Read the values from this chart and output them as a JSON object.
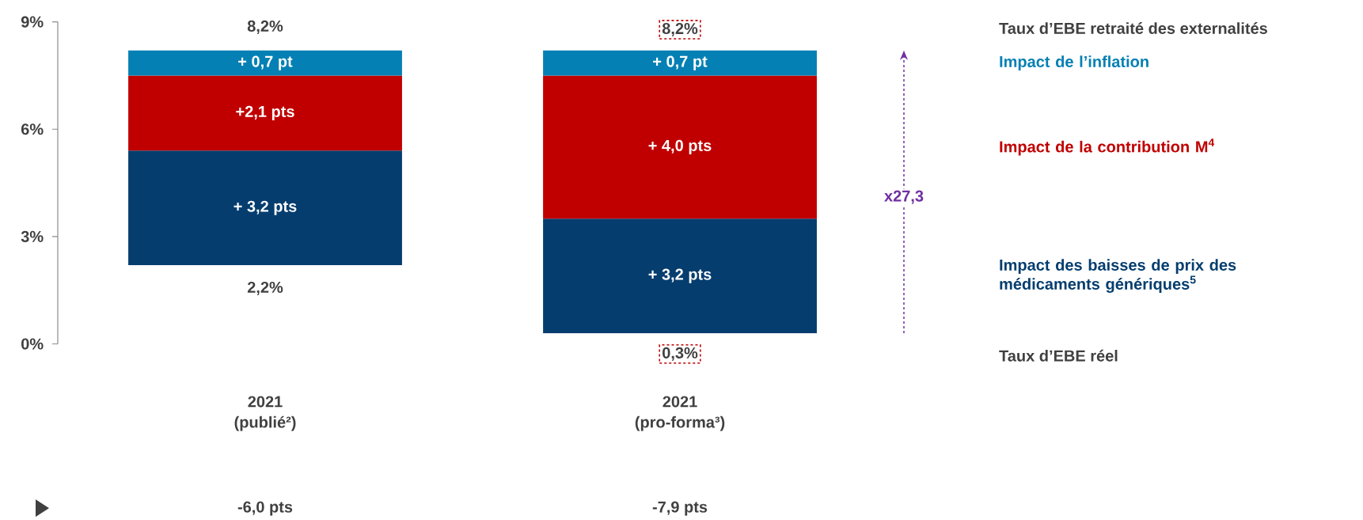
{
  "chart_data": {
    "type": "bar",
    "categories": [
      "2021 (publié²)",
      "2021 (pro-forma³)"
    ],
    "series": [
      {
        "name": "Impact des baisses de prix des médicaments génériques$^{5}$",
        "color": "#053d6e",
        "base": [
          2.2,
          0.3
        ],
        "values": [
          3.2,
          3.2
        ],
        "value_labels": [
          "+ 3,2 pts",
          "+ 3,2 pts"
        ]
      },
      {
        "name": "Impact de la contribution M$^{4}$",
        "color": "#c00000",
        "base": [
          5.4,
          3.5
        ],
        "values": [
          2.1,
          4.0
        ],
        "value_labels": [
          "+2,1 pts",
          "+ 4,0 pts"
        ]
      },
      {
        "name": "Impact de l’inflation",
        "color": "#0580b4",
        "base": [
          7.5,
          7.5
        ],
        "values": [
          0.7,
          0.7
        ],
        "value_labels": [
          "+ 0,7 pt",
          "+ 0,7 pt"
        ]
      }
    ],
    "ylim": [
      0,
      9
    ],
    "yticks": [
      {
        "value": 0,
        "label": "0%"
      },
      {
        "value": 3,
        "label": "3%"
      },
      {
        "value": 6,
        "label": "6%"
      },
      {
        "value": 9,
        "label": "9%"
      }
    ],
    "annotations": [
      "8,2%",
      "8,2%",
      "2,2%",
      "0,3%",
      "Taux d’EBE retraité des externalités",
      "Taux d’EBE réel",
      "x27,3",
      "-6,0 pts",
      "-7,9 pts"
    ]
  }
}
